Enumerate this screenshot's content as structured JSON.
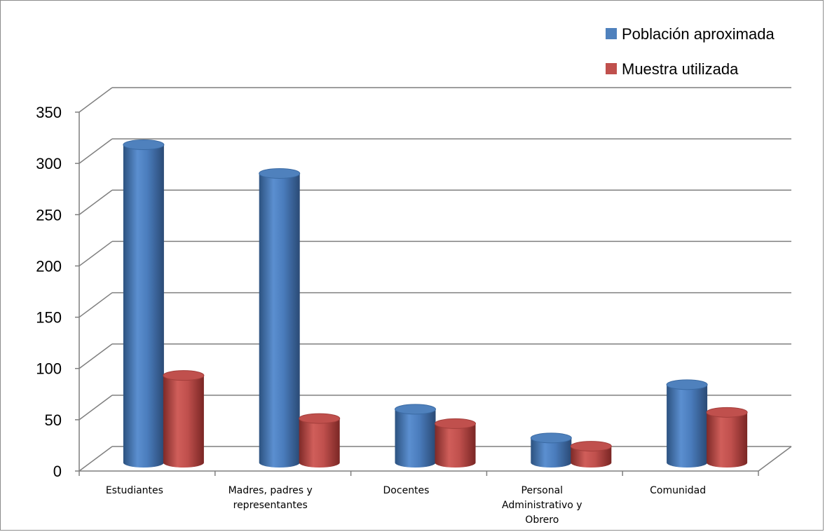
{
  "chart_data": {
    "type": "bar",
    "style": "3d-cylinder",
    "title": "",
    "xlabel": "",
    "ylabel": "",
    "ylim": [
      0,
      350
    ],
    "yticks": [
      0,
      50,
      100,
      150,
      200,
      250,
      300,
      350
    ],
    "grid": true,
    "legend_position": "top-right",
    "categories": [
      [
        "Estudiantes"
      ],
      [
        "Madres, padres y",
        "representantes"
      ],
      [
        "Docentes"
      ],
      [
        "Personal",
        "Administrativo y",
        "Obrero"
      ],
      [
        "Comunidad"
      ]
    ],
    "series": [
      {
        "name": "Población aproximada",
        "color": "#4f81bd",
        "values": [
          310,
          282,
          52,
          24,
          76
        ]
      },
      {
        "name": "Muestra utilizada",
        "color": "#c0504d",
        "values": [
          85,
          43,
          38,
          16,
          49
        ]
      }
    ]
  }
}
